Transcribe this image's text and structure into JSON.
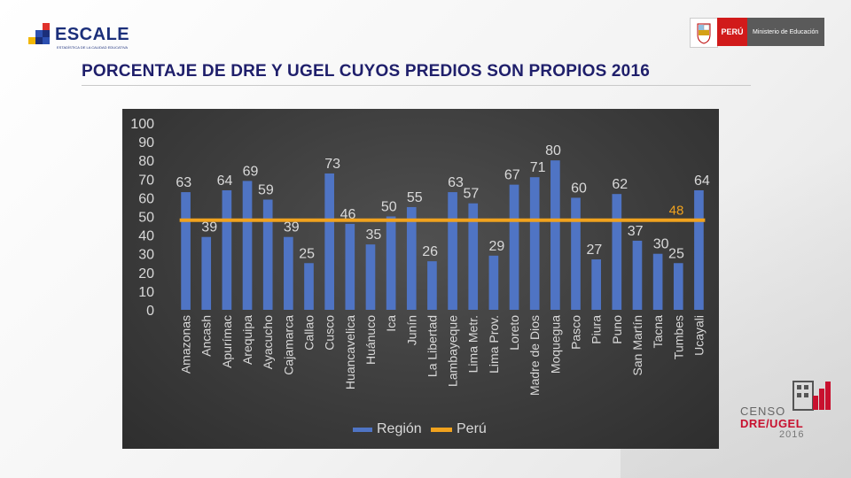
{
  "header": {
    "escale_name": "ESCALE",
    "escale_tagline": "ESTADÍSTICA DE LA CALIDAD EDUCATIVA",
    "peru_label": "PERÚ",
    "ministry_label": "Ministerio de Educación",
    "title": "PORCENTAJE DE DRE Y UGEL CUYOS PREDIOS SON PROPIOS 2016"
  },
  "footer_logo": {
    "line1": "CENSO",
    "line2": "DRE/UGEL",
    "line3": "2016"
  },
  "colors": {
    "bar": "#4f74c4",
    "line": "#f0a21e",
    "title": "#1f1f6b",
    "text": "#d9d9d9"
  },
  "chart_data": {
    "type": "bar",
    "title": "",
    "xlabel": "",
    "ylabel": "",
    "ylim": [
      0,
      100
    ],
    "yticks": [
      0,
      10,
      20,
      30,
      40,
      50,
      60,
      70,
      80,
      90,
      100
    ],
    "categories": [
      "Amazonas",
      "Ancash",
      "Apurímac",
      "Arequipa",
      "Ayacucho",
      "Cajamarca",
      "Callao",
      "Cusco",
      "Huancavelica",
      "Huánuco",
      "Ica",
      "Junín",
      "La Libertad",
      "Lambayeque",
      "Lima Metr.",
      "Lima Prov.",
      "Loreto",
      "Madre de Dios",
      "Moquegua",
      "Pasco",
      "Piura",
      "Puno",
      "San Martín",
      "Tacna",
      "Tumbes",
      "Ucayali"
    ],
    "series": [
      {
        "name": "Región",
        "kind": "bar",
        "values": [
          63,
          39,
          64,
          69,
          59,
          39,
          25,
          73,
          46,
          35,
          50,
          55,
          26,
          63,
          57,
          29,
          67,
          71,
          80,
          60,
          27,
          62,
          37,
          30,
          25,
          64
        ]
      },
      {
        "name": "Perú",
        "kind": "line",
        "value": 48
      }
    ],
    "legend": [
      "Región",
      "Perú"
    ],
    "legend_position": "bottom",
    "line_label": "48"
  }
}
